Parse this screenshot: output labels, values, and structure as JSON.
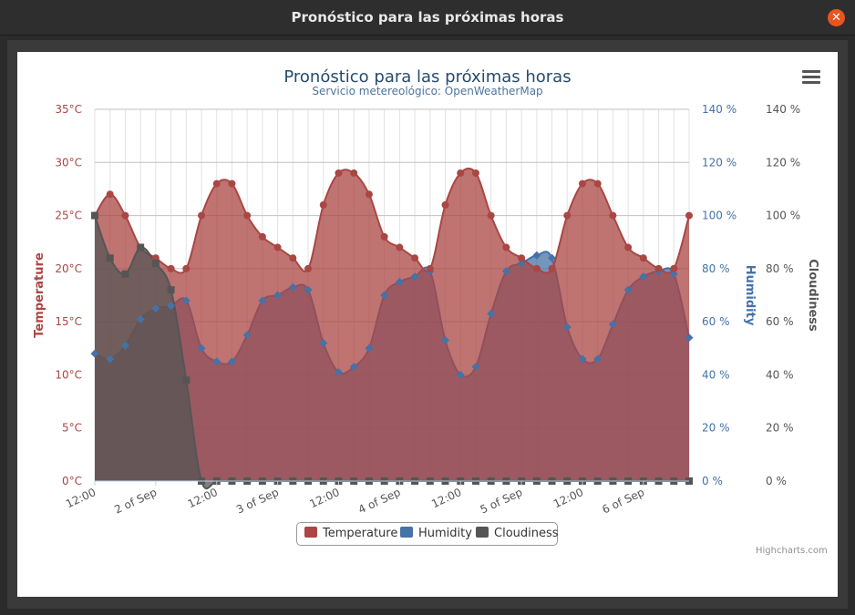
{
  "window": {
    "title": "Pronóstico para las próximas horas",
    "close_icon": "close-icon"
  },
  "menu": {
    "icon": "hamburger-menu-icon"
  },
  "credits": "Highcharts.com",
  "chart_data": {
    "type": "area",
    "title": "Pronóstico para las próximas horas",
    "subtitle": "Servicio metereológico: OpenWeatherMap",
    "x_labels": [
      "12:00",
      "2 of Sep",
      "12:00",
      "3 of Sep",
      "12:00",
      "4 of Sep",
      "12:00",
      "5 of Sep",
      "12:00",
      "6 of Sep"
    ],
    "x_label_positions": [
      0,
      4,
      8,
      12,
      16,
      20,
      24,
      28,
      32,
      36
    ],
    "grid": true,
    "legend_position": "bottom-center",
    "axes": [
      {
        "title": "Temperature",
        "side": "left",
        "min": 0,
        "max": 35,
        "step": 5,
        "ticks": [
          "0°C",
          "5°C",
          "10°C",
          "15°C",
          "20°C",
          "25°C",
          "30°C",
          "35°C"
        ],
        "color": "#aa4643"
      },
      {
        "title": "Humidity",
        "side": "right",
        "min": 0,
        "max": 140,
        "step": 20,
        "ticks": [
          "0 %",
          "20 %",
          "40 %",
          "60 %",
          "80 %",
          "100 %",
          "120 %",
          "140 %"
        ],
        "color": "#4572a7"
      },
      {
        "title": "Cloudiness",
        "side": "right",
        "min": 0,
        "max": 140,
        "step": 20,
        "ticks": [
          "0 %",
          "20 %",
          "40 %",
          "60 %",
          "80 %",
          "100 %",
          "120 %",
          "140 %"
        ],
        "color": "#555555"
      }
    ],
    "series": [
      {
        "name": "Temperature",
        "axis": 0,
        "color": "#aa4643",
        "values": [
          25,
          27,
          25,
          22,
          21,
          20,
          20,
          25,
          28,
          28,
          25,
          23,
          22,
          21,
          20,
          26,
          29,
          29,
          27,
          23,
          22,
          21,
          20,
          26,
          29,
          29,
          25,
          22,
          21,
          20,
          20,
          25,
          28,
          28,
          25,
          22,
          21,
          20,
          20,
          25
        ]
      },
      {
        "name": "Humidity",
        "axis": 1,
        "color": "#4572a7",
        "values": [
          48,
          46,
          51,
          61,
          65,
          66,
          68,
          50,
          45,
          45,
          55,
          68,
          70,
          73,
          72,
          52,
          41,
          43,
          50,
          70,
          75,
          77,
          79,
          53,
          40,
          43,
          63,
          79,
          82,
          85,
          84,
          58,
          46,
          46,
          59,
          72,
          77,
          79,
          78,
          54
        ]
      },
      {
        "name": "Cloudiness",
        "axis": 2,
        "color": "#555555",
        "values": [
          100,
          84,
          78,
          88,
          82,
          72,
          38,
          0,
          0,
          0,
          0,
          0,
          0,
          0,
          0,
          0,
          0,
          0,
          0,
          0,
          0,
          0,
          0,
          0,
          0,
          0,
          0,
          0,
          0,
          0,
          0,
          0,
          0,
          0,
          0,
          0,
          0,
          0,
          0,
          0
        ]
      }
    ]
  }
}
